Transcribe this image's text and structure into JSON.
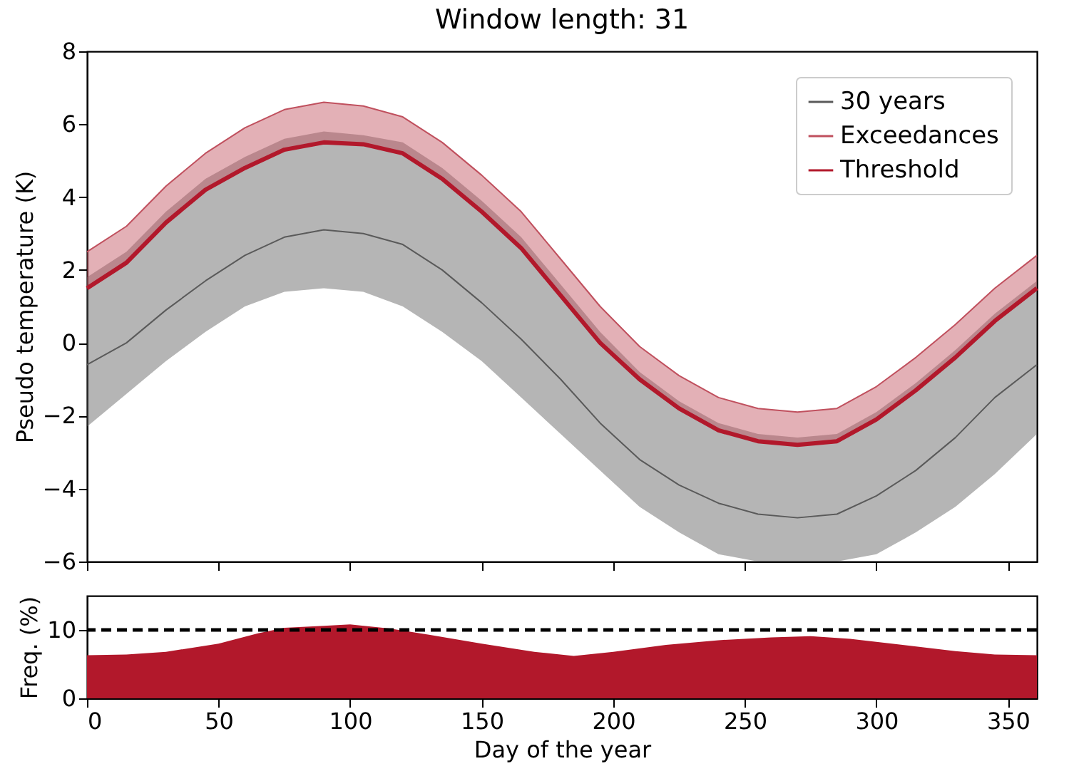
{
  "chart_data": [
    {
      "type": "line",
      "title": "Window length: 31",
      "ylabel": "Pseudo temperature (K)",
      "x": [
        0,
        15,
        30,
        45,
        60,
        75,
        90,
        105,
        120,
        135,
        150,
        165,
        180,
        195,
        210,
        225,
        240,
        255,
        270,
        285,
        300,
        315,
        330,
        345,
        361
      ],
      "series": [
        {
          "name": "30 years",
          "type": "line",
          "color": "#5a5a5a",
          "values": [
            -0.6,
            0.0,
            0.9,
            1.7,
            2.4,
            2.9,
            3.1,
            3.0,
            2.7,
            2.0,
            1.1,
            0.1,
            -1.0,
            -2.2,
            -3.2,
            -3.9,
            -4.4,
            -4.7,
            -4.8,
            -4.7,
            -4.2,
            -3.5,
            -2.6,
            -1.5,
            -0.6
          ],
          "lower": [
            -2.3,
            -1.4,
            -0.5,
            0.3,
            1.0,
            1.4,
            1.5,
            1.4,
            1.0,
            0.3,
            -0.5,
            -1.5,
            -2.5,
            -3.5,
            -4.5,
            -5.2,
            -5.8,
            -6.0,
            -6.0,
            -6.0,
            -5.8,
            -5.2,
            -4.5,
            -3.6,
            -2.5
          ],
          "upper": [
            1.8,
            2.5,
            3.6,
            4.5,
            5.1,
            5.6,
            5.8,
            5.7,
            5.5,
            4.8,
            3.9,
            2.9,
            1.6,
            0.3,
            -0.8,
            -1.6,
            -2.2,
            -2.5,
            -2.6,
            -2.5,
            -1.9,
            -1.1,
            -0.2,
            0.8,
            1.7
          ]
        },
        {
          "name": "Exceedances",
          "type": "line",
          "color": "#c0505e",
          "values": [
            2.5,
            3.2,
            4.3,
            5.2,
            5.9,
            6.4,
            6.6,
            6.5,
            6.2,
            5.5,
            4.6,
            3.6,
            2.3,
            1.0,
            -0.1,
            -0.9,
            -1.5,
            -1.8,
            -1.9,
            -1.8,
            -1.2,
            -0.4,
            0.5,
            1.5,
            2.4
          ],
          "lower": [
            1.5,
            2.2,
            3.3,
            4.2,
            4.8,
            5.3,
            5.5,
            5.45,
            5.2,
            4.5,
            3.6,
            2.6,
            1.3,
            0.0,
            -1.0,
            -1.8,
            -2.4,
            -2.7,
            -2.8,
            -2.7,
            -2.1,
            -1.3,
            -0.4,
            0.6,
            1.5
          ],
          "upper": [
            2.5,
            3.2,
            4.3,
            5.2,
            5.9,
            6.4,
            6.6,
            6.5,
            6.2,
            5.5,
            4.6,
            3.6,
            2.3,
            1.0,
            -0.1,
            -0.9,
            -1.5,
            -1.8,
            -1.9,
            -1.8,
            -1.2,
            -0.4,
            0.5,
            1.5,
            2.4
          ]
        },
        {
          "name": "Threshold",
          "color": "#b2182b",
          "values": [
            1.5,
            2.2,
            3.3,
            4.2,
            4.8,
            5.3,
            5.5,
            5.45,
            5.2,
            4.5,
            3.6,
            2.6,
            1.3,
            0.0,
            -1.0,
            -1.8,
            -2.4,
            -2.7,
            -2.8,
            -2.7,
            -2.1,
            -1.3,
            -0.4,
            0.6,
            1.5
          ]
        }
      ],
      "xlim": [
        0,
        361
      ],
      "xticks": [
        0,
        50,
        100,
        150,
        200,
        250,
        300,
        350
      ],
      "ylim": [
        -6,
        8
      ],
      "yticks": [
        -6,
        -4,
        -2,
        0,
        2,
        4,
        6,
        8
      ],
      "tick_labels": "y",
      "legend": "top right"
    },
    {
      "type": "area",
      "xlabel": "Day of the year",
      "ylabel": "Freq. (%)",
      "x": [
        0,
        15,
        30,
        50,
        65,
        75,
        90,
        100,
        115,
        130,
        150,
        170,
        185,
        200,
        220,
        240,
        260,
        275,
        290,
        310,
        330,
        345,
        361
      ],
      "series": [
        {
          "color": "#b2182b",
          "values": [
            6.3,
            6.4,
            6.8,
            8.0,
            9.5,
            10.3,
            10.6,
            10.8,
            10.2,
            9.3,
            8.0,
            6.8,
            6.2,
            6.8,
            7.8,
            8.5,
            8.9,
            9.1,
            8.7,
            7.8,
            6.9,
            6.4,
            6.3
          ]
        }
      ],
      "xlim": [
        0,
        361
      ],
      "xticks": [
        0,
        50,
        100,
        150,
        200,
        250,
        300,
        350
      ],
      "ylim": [
        0,
        15
      ],
      "yticks": [
        0,
        10
      ],
      "ref_lines": [
        {
          "axis": "y",
          "value": 10,
          "color": "#000000",
          "line_style": "dashed"
        }
      ]
    }
  ]
}
